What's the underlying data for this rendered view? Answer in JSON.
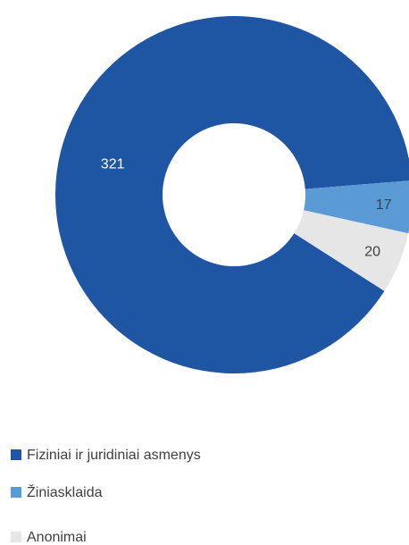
{
  "chart_data": {
    "type": "donut",
    "categories": [
      "Fiziniai ir juridiniai asmenys",
      "Žiniasklaida",
      "Anonimai"
    ],
    "values": [
      321,
      17,
      20
    ],
    "colors": [
      "#1f56a3",
      "#5b9bd5",
      "#e6e6e6"
    ],
    "legend": "bottom"
  }
}
